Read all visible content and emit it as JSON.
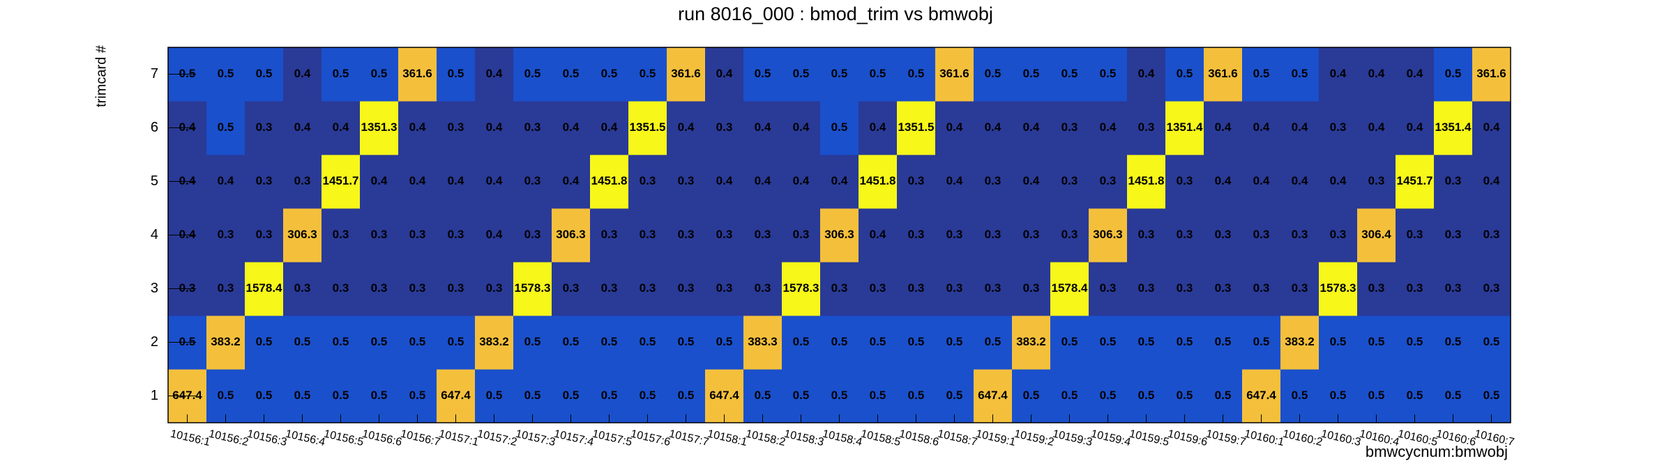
{
  "chart_data": {
    "type": "heatmap",
    "title": "run 8016_000 : bmod_trim vs bmwobj",
    "x_label": "bmwcycnum:bmwobj",
    "y_label": "trimcard #",
    "palette": [
      "#2a3a97",
      "#1a50cc",
      "#f4c03c",
      "#f7f71a"
    ],
    "x_categories": [
      "10156:1",
      "10156:2",
      "10156:3",
      "10156:4",
      "10156:5",
      "10156:6",
      "10156:7",
      "10157:1",
      "10157:2",
      "10157:3",
      "10157:4",
      "10157:5",
      "10157:6",
      "10157:7",
      "10158:1",
      "10158:2",
      "10158:3",
      "10158:4",
      "10158:5",
      "10158:6",
      "10158:7",
      "10159:1",
      "10159:2",
      "10159:3",
      "10159:4",
      "10159:5",
      "10159:6",
      "10159:7",
      "10160:1",
      "10160:2",
      "10160:3",
      "10160:4",
      "10160:5",
      "10160:6",
      "10160:7"
    ],
    "y_categories": [
      1,
      2,
      3,
      4,
      5,
      6,
      7
    ],
    "values": [
      [
        647.4,
        0.5,
        0.5,
        0.5,
        0.5,
        0.5,
        0.5,
        647.4,
        0.5,
        0.5,
        0.5,
        0.5,
        0.5,
        0.5,
        647.4,
        0.5,
        0.5,
        0.5,
        0.5,
        0.5,
        0.5,
        647.4,
        0.5,
        0.5,
        0.5,
        0.5,
        0.5,
        0.5,
        647.4,
        0.5,
        0.5,
        0.5,
        0.5,
        0.5,
        0.5
      ],
      [
        0.5,
        383.2,
        0.5,
        0.5,
        0.5,
        0.5,
        0.5,
        0.5,
        383.2,
        0.5,
        0.5,
        0.5,
        0.5,
        0.5,
        0.5,
        383.3,
        0.5,
        0.5,
        0.5,
        0.5,
        0.5,
        0.5,
        383.2,
        0.5,
        0.5,
        0.5,
        0.5,
        0.5,
        0.5,
        383.2,
        0.5,
        0.5,
        0.5,
        0.5,
        0.5
      ],
      [
        0.3,
        0.3,
        1578.4,
        0.3,
        0.3,
        0.3,
        0.3,
        0.3,
        0.3,
        1578.3,
        0.3,
        0.3,
        0.3,
        0.3,
        0.3,
        0.3,
        1578.3,
        0.3,
        0.3,
        0.3,
        0.3,
        0.3,
        0.3,
        1578.4,
        0.3,
        0.3,
        0.3,
        0.3,
        0.3,
        0.3,
        1578.3,
        0.3,
        0.3,
        0.3,
        0.3
      ],
      [
        0.4,
        0.3,
        0.3,
        306.3,
        0.3,
        0.3,
        0.3,
        0.3,
        0.4,
        0.3,
        306.3,
        0.3,
        0.3,
        0.3,
        0.3,
        0.3,
        0.3,
        306.3,
        0.4,
        0.3,
        0.3,
        0.3,
        0.3,
        0.3,
        306.3,
        0.3,
        0.3,
        0.3,
        0.3,
        0.3,
        0.3,
        306.4,
        0.3,
        0.3,
        0.3
      ],
      [
        0.4,
        0.4,
        0.3,
        0.3,
        1451.7,
        0.4,
        0.4,
        0.4,
        0.4,
        0.3,
        0.4,
        1451.8,
        0.3,
        0.3,
        0.4,
        0.4,
        0.4,
        0.4,
        1451.8,
        0.3,
        0.4,
        0.3,
        0.4,
        0.3,
        0.3,
        1451.8,
        0.3,
        0.4,
        0.4,
        0.4,
        0.4,
        0.3,
        1451.7,
        0.3,
        0.4
      ],
      [
        0.4,
        0.5,
        0.3,
        0.4,
        0.4,
        1351.3,
        0.4,
        0.3,
        0.4,
        0.3,
        0.4,
        0.4,
        1351.5,
        0.4,
        0.3,
        0.4,
        0.4,
        0.5,
        0.4,
        1351.5,
        0.4,
        0.4,
        0.4,
        0.3,
        0.4,
        0.3,
        1351.4,
        0.4,
        0.4,
        0.4,
        0.3,
        0.4,
        0.4,
        1351.4,
        0.4
      ],
      [
        0.5,
        0.5,
        0.5,
        0.4,
        0.5,
        0.5,
        361.6,
        0.5,
        0.4,
        0.5,
        0.5,
        0.5,
        0.5,
        361.6,
        0.4,
        0.5,
        0.5,
        0.5,
        0.5,
        0.5,
        361.6,
        0.5,
        0.5,
        0.5,
        0.5,
        0.4,
        0.5,
        361.6,
        0.5,
        0.5,
        0.4,
        0.4,
        0.4,
        0.5,
        361.6
      ]
    ]
  }
}
